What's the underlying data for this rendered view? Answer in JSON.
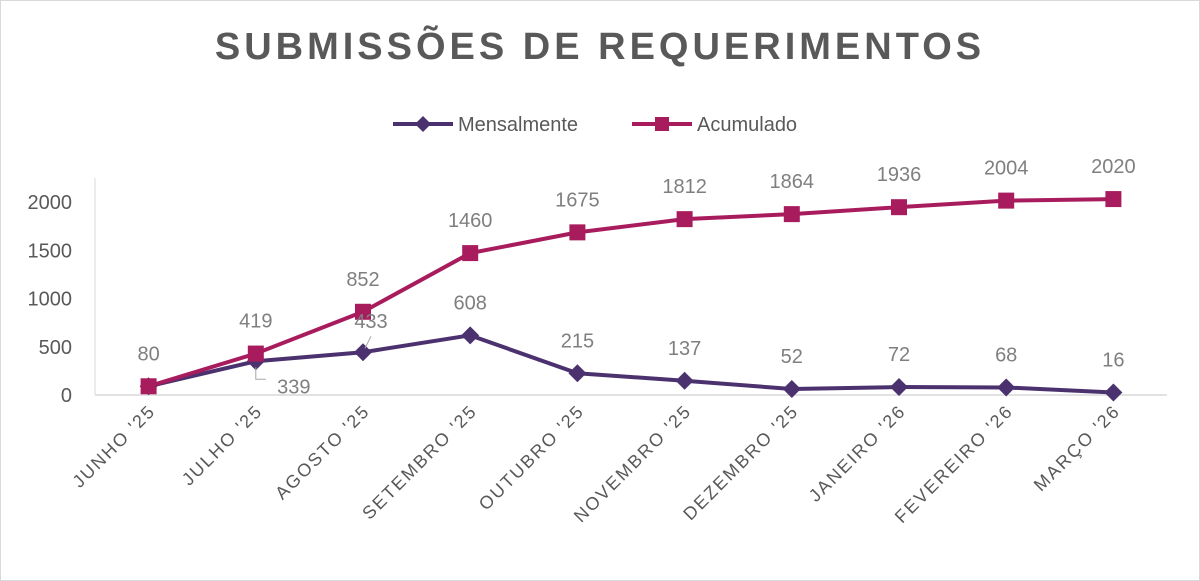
{
  "chart_data": {
    "type": "line",
    "title": "SUBMISSÕES DE REQUERIMENTOS",
    "categories": [
      "JUNHO '25",
      "JULHO '25",
      "AGOSTO '25",
      "SETEMBRO '25",
      "OUTUBRO '25",
      "NOVEMBRO '25",
      "DEZEMBRO '25",
      "JANEIRO '26",
      "FEVEREIRO '26",
      "MARÇO '26"
    ],
    "series": [
      {
        "name": "Mensalmente",
        "color": "#4B326E",
        "marker": "diamond",
        "values": [
          80,
          339,
          433,
          608,
          215,
          137,
          52,
          72,
          68,
          16
        ]
      },
      {
        "name": "Acumulado",
        "color": "#A81C5E",
        "marker": "square",
        "values": [
          80,
          419,
          852,
          1460,
          1675,
          1812,
          1864,
          1936,
          2004,
          2020
        ]
      }
    ],
    "ylim": [
      0,
      2000
    ],
    "yticks": [
      0,
      500,
      1000,
      1500,
      2000
    ],
    "grid": false,
    "legend": "top",
    "xlabel": "",
    "ylabel": ""
  }
}
